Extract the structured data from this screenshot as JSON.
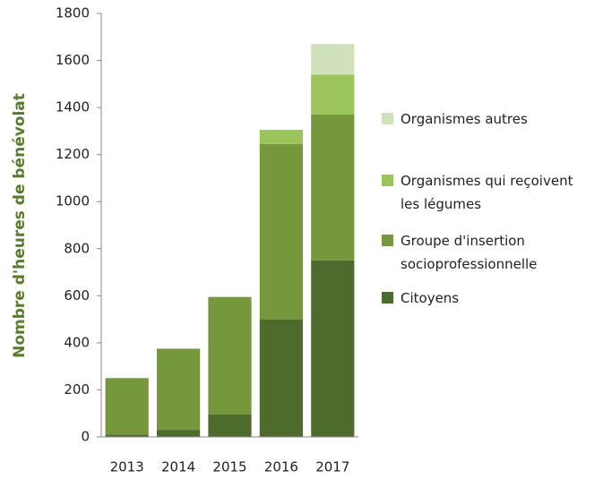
{
  "chart_data": {
    "type": "stacked_bar",
    "y_label": "Nombre d'heures de bénévolat",
    "categories": [
      "2013",
      "2014",
      "2015",
      "2016",
      "2017"
    ],
    "series": [
      {
        "name": "Citoyens",
        "color": "#4e6b2e",
        "values": [
          10,
          30,
          95,
          500,
          750
        ]
      },
      {
        "name": "Groupe d'insertion socioprofessionnelle",
        "color": "#77973d",
        "values": [
          240,
          345,
          500,
          745,
          620
        ]
      },
      {
        "name": "Organismes qui reçoivent les légumes",
        "color": "#9bc45a",
        "values": [
          0,
          0,
          0,
          60,
          170
        ]
      },
      {
        "name": "Organismes autres",
        "color": "#d0e1bc",
        "values": [
          0,
          0,
          0,
          0,
          130
        ]
      }
    ],
    "ylim": [
      0,
      1800
    ],
    "yticks": [
      0,
      200,
      400,
      600,
      800,
      1000,
      1200,
      1400,
      1600,
      1800
    ]
  }
}
